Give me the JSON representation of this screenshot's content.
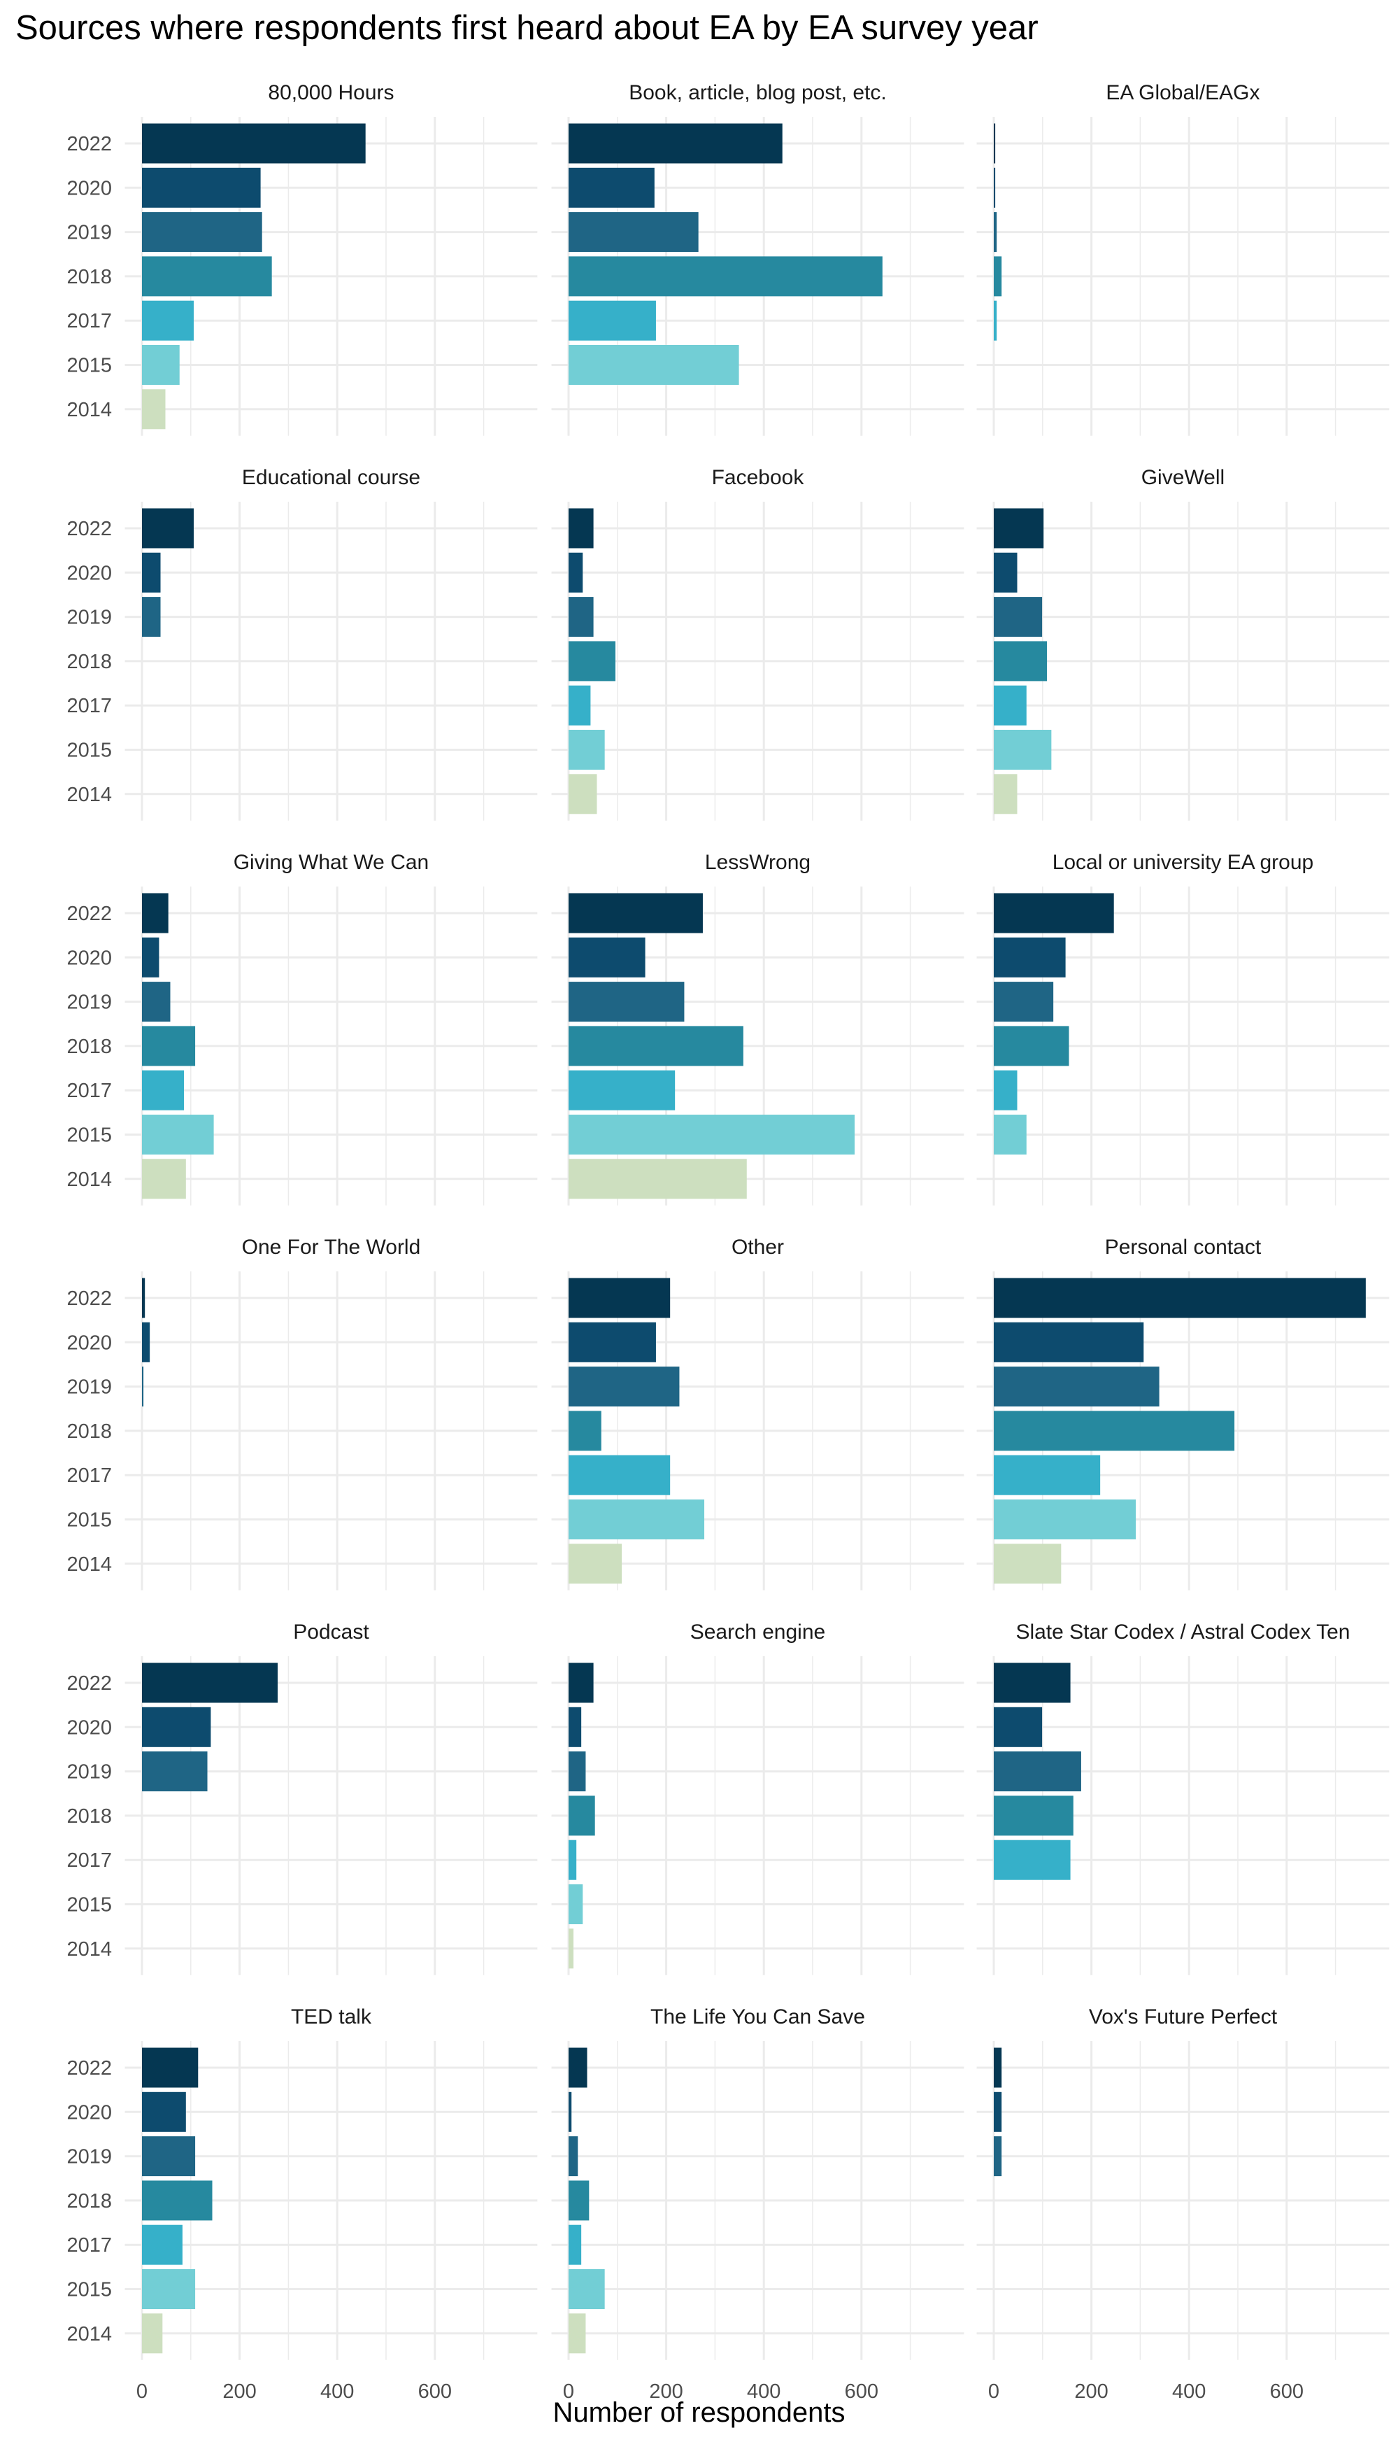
{
  "chart_data": {
    "type": "bar",
    "orientation": "horizontal",
    "facet_layout": "3 columns x 6 rows",
    "title": "Sources where respondents first heard about EA by EA survey year",
    "xlabel": "Number of respondents",
    "ylabel": "",
    "xlim": [
      -35,
      810
    ],
    "x_ticks": [
      0,
      200,
      400,
      600
    ],
    "grid": true,
    "categories": [
      "2022",
      "2020",
      "2019",
      "2018",
      "2017",
      "2015",
      "2014"
    ],
    "colors": {
      "2022": "#053752",
      "2020": "#0d4b6e",
      "2019": "#1f6585",
      "2018": "#26899f",
      "2017": "#36b0c9",
      "2015": "#72ced5",
      "2014": "#cddfbf"
    },
    "panels": [
      {
        "name": "80,000 Hours",
        "values": [
          458,
          243,
          246,
          266,
          106,
          77,
          48
        ]
      },
      {
        "name": "Book, article, blog post, etc.",
        "values": [
          438,
          176,
          266,
          643,
          179,
          349,
          null
        ]
      },
      {
        "name": "EA Global/EAGx",
        "values": [
          3,
          3,
          6,
          16,
          6,
          null,
          null
        ]
      },
      {
        "name": "Educational course",
        "values": [
          106,
          38,
          38,
          null,
          null,
          null,
          null
        ]
      },
      {
        "name": "Facebook",
        "values": [
          51,
          29,
          51,
          96,
          45,
          74,
          58
        ]
      },
      {
        "name": "GiveWell",
        "values": [
          102,
          48,
          99,
          109,
          67,
          118,
          48
        ]
      },
      {
        "name": "Giving What We Can",
        "values": [
          54,
          35,
          58,
          109,
          86,
          147,
          90
        ]
      },
      {
        "name": "LessWrong",
        "values": [
          275,
          157,
          237,
          358,
          218,
          586,
          365
        ]
      },
      {
        "name": "Local or university EA group",
        "values": [
          246,
          147,
          122,
          154,
          48,
          67,
          null
        ]
      },
      {
        "name": "One For The World",
        "values": [
          6,
          16,
          3,
          null,
          null,
          null,
          null
        ]
      },
      {
        "name": "Other",
        "values": [
          208,
          179,
          227,
          67,
          208,
          278,
          109
        ]
      },
      {
        "name": "Personal contact",
        "values": [
          762,
          307,
          339,
          493,
          218,
          291,
          138
        ]
      },
      {
        "name": "Podcast",
        "values": [
          278,
          141,
          134,
          null,
          null,
          null,
          null
        ]
      },
      {
        "name": "Search engine",
        "values": [
          51,
          26,
          35,
          54,
          16,
          29,
          10
        ]
      },
      {
        "name": "Slate Star Codex / Astral Codex Ten",
        "values": [
          157,
          99,
          179,
          163,
          157,
          null,
          null
        ]
      },
      {
        "name": "TED talk",
        "values": [
          115,
          90,
          109,
          144,
          83,
          109,
          42
        ]
      },
      {
        "name": "The Life You Can Save",
        "values": [
          38,
          6,
          19,
          42,
          26,
          74,
          35
        ]
      },
      {
        "name": "Vox's Future Perfect",
        "values": [
          16,
          16,
          16,
          null,
          null,
          null,
          null
        ]
      }
    ]
  }
}
